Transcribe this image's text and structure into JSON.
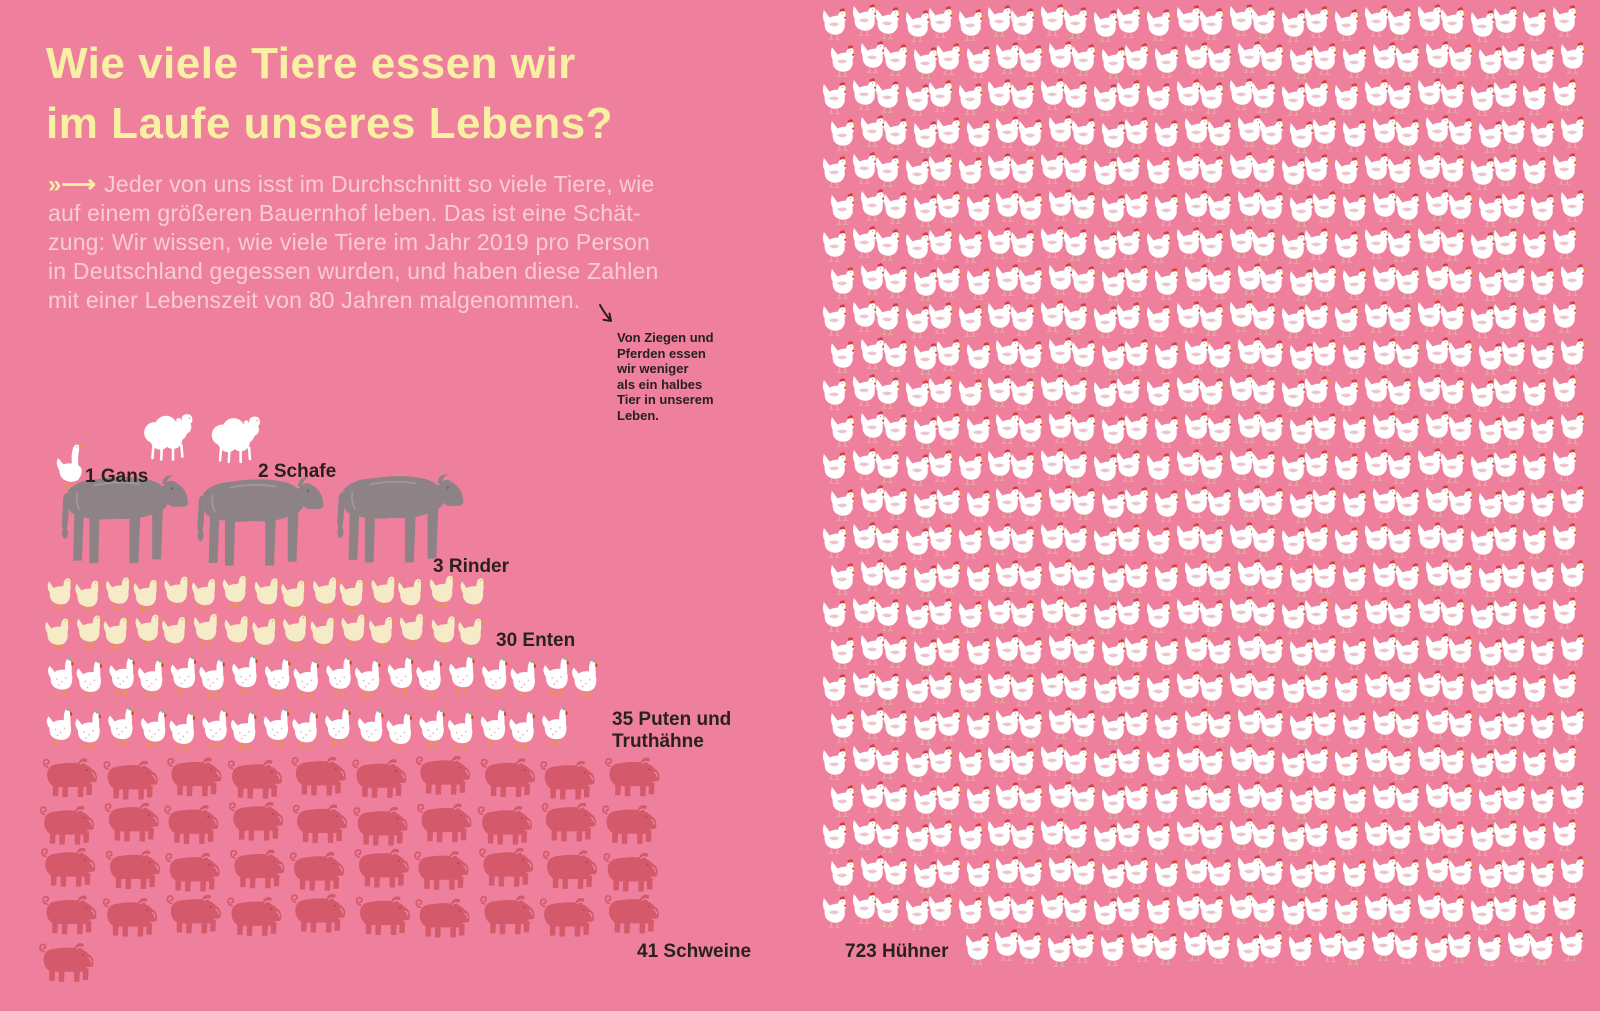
{
  "colors": {
    "background": "#ef809d",
    "title": "#f8f0a3",
    "intro_text": "#f8ccd3",
    "label_text": "#29211f",
    "cattle": "#8d8286",
    "pig": "#d4596b",
    "duck_cream": "#f5ebc7",
    "white_animal": "#ffffff",
    "comb_red": "#d2413b",
    "beak_orange": "#e8973f"
  },
  "header": {
    "title_lines": [
      "Wie viele Tiere essen wir",
      "im Laufe unseres Lebens?"
    ],
    "intro_arrow": "»⟶",
    "intro_lines": [
      "Jeder von uns isst im Durchschnitt so viele Tiere, wie",
      "auf einem größeren Bauernhof leben. Das ist eine Schät-",
      "zung: Wir wissen, wie viele Tiere im Jahr 2019 pro Person",
      "in Deutschland gegessen wurden, und haben diese Zahlen",
      "mit einer Lebenszeit von 80 Jahren malgenommen."
    ]
  },
  "annotation": {
    "lines": [
      "Von Ziegen und",
      "Pferden essen",
      "wir weniger",
      "als ein halbes",
      "Tier in unserem",
      "Leben."
    ]
  },
  "chart_data": {
    "type": "pictogram",
    "title": "Wie viele Tiere essen wir im Laufe unseres Lebens?",
    "series": [
      {
        "animal": "Gans",
        "count": 1,
        "label": "1 Gans",
        "icon": "goose"
      },
      {
        "animal": "Schafe",
        "count": 2,
        "label": "2 Schafe",
        "icon": "sheep"
      },
      {
        "animal": "Rinder",
        "count": 3,
        "label": "3 Rinder",
        "icon": "cattle"
      },
      {
        "animal": "Enten",
        "count": 30,
        "label": "30 Enten",
        "icon": "duck"
      },
      {
        "animal": "Puten und Truthähne",
        "count": 35,
        "label": "35 Puten und Truthähne",
        "label_lines": [
          "35 Puten und",
          "Truthähne"
        ],
        "icon": "turkey"
      },
      {
        "animal": "Schweine",
        "count": 41,
        "label": "41 Schweine",
        "icon": "pig"
      },
      {
        "animal": "Hühner",
        "count": 723,
        "label": "723 Hühner",
        "icon": "chicken"
      }
    ]
  }
}
